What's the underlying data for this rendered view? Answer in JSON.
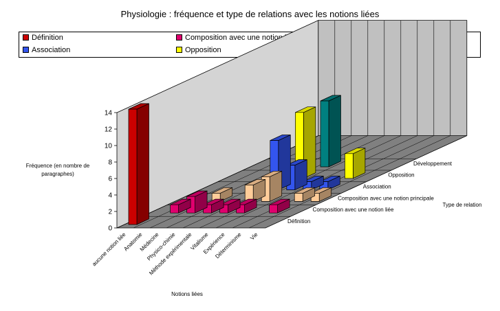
{
  "chart_data": {
    "type": "bar",
    "title": "Physiologie : fréquence et type de relations avec les notions liées",
    "xlabel": "Notions liées",
    "ylabel": "Fréquence (en nombre de paragraphes)",
    "zlabel": "Type de relation",
    "ylim": [
      0,
      14
    ],
    "yticks": [
      "0",
      "2",
      "4",
      "6",
      "8",
      "10",
      "12",
      "14"
    ],
    "grid": true,
    "legend_position": "top",
    "categories": [
      "aucune notion liée",
      "Anatomie",
      "Médecine",
      "Physico-chimie",
      "Méthode expérimentale",
      "Vitalisme",
      "Expérience",
      "Déterminisme",
      "Vie"
    ],
    "series": [
      {
        "name": "Définition",
        "color": "#cc0000",
        "values": [
          14,
          0,
          0,
          0,
          0,
          0,
          0,
          0,
          0
        ]
      },
      {
        "name": "Composition avec une notion liée",
        "color": "#e0006e",
        "values": [
          0,
          1,
          2,
          1,
          1,
          1,
          0,
          1,
          0
        ]
      },
      {
        "name": "Composition avec une notion principale",
        "color": "#ffcc99",
        "values": [
          0,
          0,
          1,
          0,
          2,
          3,
          0,
          1,
          1
        ]
      },
      {
        "name": "Association",
        "color": "#3355ee",
        "values": [
          0,
          0,
          0,
          0,
          6,
          3,
          1,
          1,
          0
        ]
      },
      {
        "name": "Opposition",
        "color": "#ffff00",
        "values": [
          0,
          0,
          0,
          0,
          8,
          0,
          0,
          3,
          0
        ]
      },
      {
        "name": "Développement",
        "color": "#008080",
        "values": [
          0,
          0,
          0,
          0,
          8,
          0,
          0,
          0,
          0
        ]
      }
    ]
  }
}
